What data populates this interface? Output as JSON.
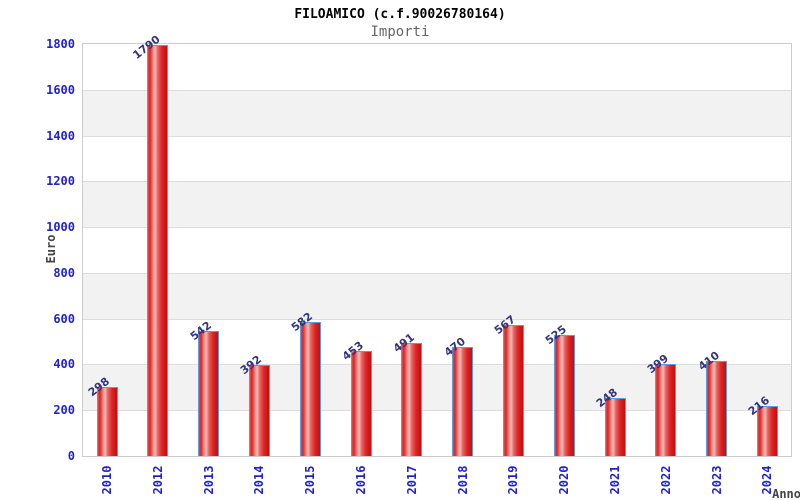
{
  "header": {
    "title": "FILOAMICO (c.f.90026780164)",
    "subtitle": "Importi"
  },
  "chart_data": {
    "type": "bar",
    "title": "FILOAMICO (c.f.90026780164)",
    "subtitle": "Importi",
    "xlabel": "Anno",
    "ylabel": "Euro",
    "categories": [
      "2010",
      "2012",
      "2013",
      "2014",
      "2015",
      "2016",
      "2017",
      "2018",
      "2019",
      "2020",
      "2021",
      "2022",
      "2023",
      "2024"
    ],
    "values": [
      298,
      1790,
      542,
      392,
      582,
      453,
      491,
      470,
      567,
      525,
      248,
      399,
      410,
      216
    ],
    "ylim": [
      0,
      1800
    ],
    "ytick_step": 200,
    "grid": true,
    "legend_position": "none",
    "colors": {
      "bar_fill": "#dc2424",
      "bar_highlight": "#f4b7b3",
      "bar_border": "#5b9de0",
      "tick_label": "#2222cc",
      "value_label": "#333380",
      "axis_title": "#444444",
      "band": "#f2f2f2",
      "gridline": "#dddddd",
      "plot_border": "#cccccc",
      "title": "#000000",
      "subtitle": "#666666"
    }
  }
}
